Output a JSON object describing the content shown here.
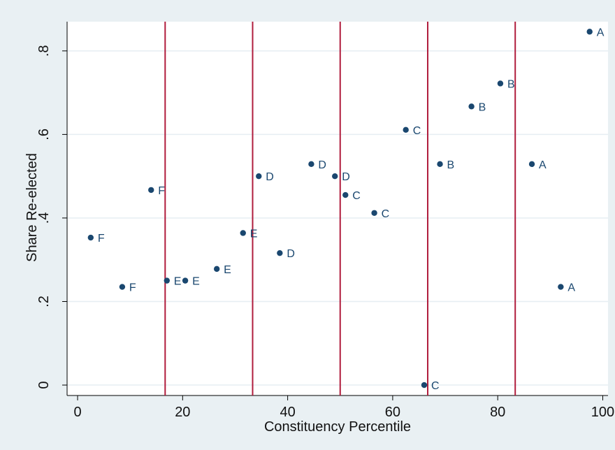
{
  "chart_data": {
    "type": "scatter",
    "xlabel": "Constituency Percentile",
    "ylabel": "Share Re-elected",
    "xlim": [
      -2,
      101
    ],
    "ylim": [
      -0.025,
      0.87
    ],
    "xticks": [
      0,
      20,
      40,
      60,
      80,
      100
    ],
    "xtick_labels": [
      "0",
      "20",
      "40",
      "60",
      "80",
      "100"
    ],
    "yticks": [
      0,
      0.2,
      0.4,
      0.6,
      0.8
    ],
    "ytick_labels": [
      "0",
      ".2",
      ".4",
      ".6",
      ".8"
    ],
    "vertical_lines": [
      16.67,
      33.33,
      50,
      66.67,
      83.33
    ],
    "grid": "horizontal",
    "colors": {
      "background": "#e9f0f3",
      "plot_background": "#ffffff",
      "marker": "#1a476f",
      "vline": "#b01c3c",
      "grid": "#e6eef3"
    },
    "points": [
      {
        "x": 2.5,
        "y": 0.353,
        "label": "F"
      },
      {
        "x": 8.5,
        "y": 0.235,
        "label": "F"
      },
      {
        "x": 14,
        "y": 0.467,
        "label": "F"
      },
      {
        "x": 17,
        "y": 0.25,
        "label": "E"
      },
      {
        "x": 20.5,
        "y": 0.25,
        "label": "E"
      },
      {
        "x": 26.5,
        "y": 0.278,
        "label": "E"
      },
      {
        "x": 31.5,
        "y": 0.364,
        "label": "E"
      },
      {
        "x": 34.5,
        "y": 0.5,
        "label": "D"
      },
      {
        "x": 38.5,
        "y": 0.316,
        "label": "D"
      },
      {
        "x": 44.5,
        "y": 0.529,
        "label": "D"
      },
      {
        "x": 49,
        "y": 0.5,
        "label": "D"
      },
      {
        "x": 51,
        "y": 0.455,
        "label": "C"
      },
      {
        "x": 56.5,
        "y": 0.412,
        "label": "C"
      },
      {
        "x": 62.5,
        "y": 0.611,
        "label": "C"
      },
      {
        "x": 66,
        "y": 0.0,
        "label": "C"
      },
      {
        "x": 69,
        "y": 0.529,
        "label": "B"
      },
      {
        "x": 75,
        "y": 0.667,
        "label": "B"
      },
      {
        "x": 80.5,
        "y": 0.722,
        "label": "B"
      },
      {
        "x": 86.5,
        "y": 0.529,
        "label": "A"
      },
      {
        "x": 92,
        "y": 0.235,
        "label": "A"
      },
      {
        "x": 97.5,
        "y": 0.846,
        "label": "A"
      }
    ]
  }
}
